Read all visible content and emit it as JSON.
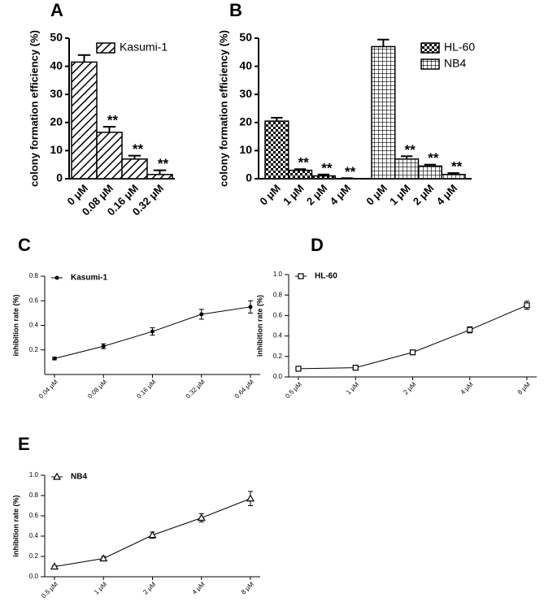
{
  "chart_data": [
    {
      "type": "bar",
      "panel": "A",
      "y_label": "colony formation efficiency (%)",
      "categories": [
        "0 μM",
        "0.08 μM",
        "0.16 μM",
        "0.32 μM"
      ],
      "series": [
        {
          "name": "Kasumi-1",
          "color": "#000000",
          "pattern": "diagonal",
          "values": [
            41.5,
            16.5,
            7,
            1.5
          ],
          "errors": [
            2.5,
            2,
            1.2,
            1.5
          ],
          "annotations": [
            null,
            "**",
            "**",
            "**"
          ]
        }
      ],
      "ylim": [
        0,
        50
      ],
      "yticks": [
        0,
        10,
        20,
        30,
        40,
        50
      ],
      "legend": "upper right"
    },
    {
      "type": "bar",
      "panel": "B",
      "y_label": "colony formation efficiency (%)",
      "categories": [
        "0 μM",
        "1 μM",
        "2 μM",
        "4 μM"
      ],
      "series": [
        {
          "name": "HL-60",
          "color": "#000000",
          "pattern": "checker",
          "values": [
            20.5,
            3,
            1,
            0
          ],
          "errors": [
            1.2,
            0.4,
            0.5,
            0.2
          ],
          "annotations": [
            null,
            "**",
            "**",
            "**"
          ]
        },
        {
          "name": "NB4",
          "color": "#000000",
          "pattern": "grid",
          "values": [
            47,
            7,
            4.5,
            1.5
          ],
          "errors": [
            2.5,
            1,
            0.5,
            0.5
          ],
          "annotations": [
            null,
            "**",
            "**",
            "**"
          ]
        }
      ],
      "ylim": [
        0,
        50
      ],
      "yticks": [
        0,
        10,
        20,
        30,
        40,
        50
      ],
      "legend": "upper right"
    },
    {
      "type": "line",
      "panel": "C",
      "y_label": "inhibition rate (%)",
      "categories": [
        "0.04 μM",
        "0.08 μM",
        "0.16 μM",
        "0.32 μM",
        "0.64 μM"
      ],
      "series": [
        {
          "name": "Kasumi-1",
          "color": "#000000",
          "marker": "circle",
          "values": [
            0.13,
            0.23,
            0.35,
            0.49,
            0.55
          ],
          "errors": [
            0.01,
            0.02,
            0.03,
            0.04,
            0.05
          ]
        }
      ],
      "ylim": [
        0,
        0.8
      ],
      "yticks": [
        0.2,
        0.4,
        0.6,
        0.8
      ],
      "legend": "upper left"
    },
    {
      "type": "line",
      "panel": "D",
      "y_label": "inhibition rate (%)",
      "categories": [
        "0.5 μM",
        "1 μM",
        "2 μM",
        "4 μM",
        "8 μM"
      ],
      "series": [
        {
          "name": "HL-60",
          "color": "#000000",
          "marker": "square",
          "values": [
            0.08,
            0.09,
            0.24,
            0.46,
            0.7
          ],
          "errors": [
            0.01,
            0.01,
            0.02,
            0.03,
            0.04
          ]
        }
      ],
      "ylim": [
        0,
        1.0
      ],
      "yticks": [
        {
          "value": 0,
          "label": "0.0"
        },
        0.2,
        0.4,
        0.6,
        0.8,
        {
          "value": 1,
          "label": "1.0"
        }
      ],
      "legend": "upper left"
    },
    {
      "type": "line",
      "panel": "E",
      "y_label": "inhibition rate (%)",
      "categories": [
        "0.5 μM",
        "1 μM",
        "2 μM",
        "4 μM",
        "8 μM"
      ],
      "series": [
        {
          "name": "NB4",
          "color": "#000000",
          "marker": "triangle",
          "values": [
            0.1,
            0.18,
            0.41,
            0.58,
            0.77
          ],
          "errors": [
            0.01,
            0.02,
            0.03,
            0.04,
            0.07
          ]
        }
      ],
      "ylim": [
        0,
        1.0
      ],
      "yticks": [
        {
          "value": 0,
          "label": "0.0"
        },
        0.2,
        0.4,
        0.6,
        0.8,
        {
          "value": 1,
          "label": "1.0"
        }
      ],
      "legend": "upper left"
    }
  ]
}
